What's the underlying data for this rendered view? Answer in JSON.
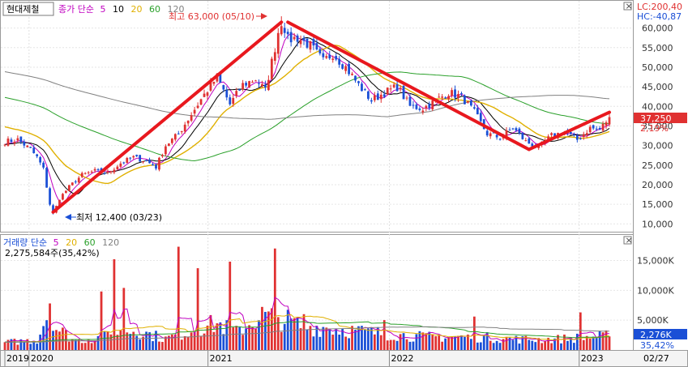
{
  "stock_name": "현대제철",
  "price_legend": {
    "label": "종가 단순",
    "periods": [
      "5",
      "10",
      "20",
      "60",
      "120"
    ]
  },
  "volume_legend": {
    "label": "거래량 단순",
    "periods": [
      "5",
      "20",
      "60",
      "120"
    ],
    "value_text": "2,275,584주(35,42%)"
  },
  "annotations": {
    "high": "최고 63,000 (05/10)",
    "low": "최저 12,400 (03/23)"
  },
  "top_right": {
    "lc": "LC:200,40",
    "hc": "HC:-40,87"
  },
  "current": {
    "price_label": "37,250",
    "change_label": "2,19%",
    "volume_label": "2,276K",
    "volume_pct": "35,42%"
  },
  "date_label": "02/27",
  "x_labels": [
    "2019",
    "2020",
    "2021",
    "2022",
    "2023"
  ],
  "colors": {
    "up": "#e03131",
    "down": "#1a4fd6",
    "ma5": "#c000c0",
    "ma10": "#000000",
    "ma20": "#e0b000",
    "ma60": "#2aa02a",
    "ma120": "#808080",
    "trend": "#e8181e",
    "accent": "#e03131"
  },
  "chart_data": {
    "type": "candlestick",
    "price_axis": {
      "ticks": [
        10000,
        15000,
        20000,
        25000,
        30000,
        35000,
        40000,
        45000,
        50000,
        55000,
        60000
      ],
      "tick_labels": [
        "10,000",
        "15,000",
        "20,000",
        "25,000",
        "30,000",
        "35,000",
        "40,000",
        "45,000",
        "50,000",
        "55,000",
        "60,000"
      ],
      "range": [
        8000,
        65500
      ]
    },
    "volume_axis": {
      "ticks": [
        5000,
        10000,
        15000
      ],
      "tick_labels": [
        "5,000K",
        "10,000K",
        "15,000K"
      ],
      "range": [
        0,
        19000
      ]
    },
    "price_anchors": [
      [
        0,
        31000
      ],
      [
        4,
        31500
      ],
      [
        8,
        29000
      ],
      [
        10,
        27000
      ],
      [
        12,
        24000
      ],
      [
        14,
        15000
      ],
      [
        15,
        12400
      ],
      [
        17,
        16500
      ],
      [
        20,
        19500
      ],
      [
        24,
        22500
      ],
      [
        28,
        23500
      ],
      [
        32,
        23000
      ],
      [
        36,
        25500
      ],
      [
        40,
        27000
      ],
      [
        44,
        26000
      ],
      [
        47,
        24500
      ],
      [
        50,
        30000
      ],
      [
        54,
        33000
      ],
      [
        58,
        38000
      ],
      [
        62,
        43000
      ],
      [
        66,
        47500
      ],
      [
        70,
        40500
      ],
      [
        74,
        45500
      ],
      [
        78,
        47000
      ],
      [
        81,
        44000
      ],
      [
        84,
        55000
      ],
      [
        86,
        63000
      ],
      [
        88,
        57000
      ],
      [
        91,
        57500
      ],
      [
        95,
        55500
      ],
      [
        99,
        51500
      ],
      [
        102,
        53500
      ],
      [
        106,
        50000
      ],
      [
        110,
        45500
      ],
      [
        114,
        41500
      ],
      [
        118,
        43500
      ],
      [
        122,
        45000
      ],
      [
        126,
        40000
      ],
      [
        130,
        39500
      ],
      [
        134,
        41500
      ],
      [
        138,
        43500
      ],
      [
        142,
        42500
      ],
      [
        146,
        38500
      ],
      [
        150,
        33000
      ],
      [
        154,
        32000
      ],
      [
        158,
        34500
      ],
      [
        162,
        31000
      ],
      [
        166,
        29500
      ],
      [
        170,
        32500
      ],
      [
        174,
        33500
      ],
      [
        178,
        31500
      ],
      [
        182,
        34500
      ],
      [
        185,
        34000
      ],
      [
        188,
        37250
      ]
    ],
    "candle_count": 189,
    "first_candle_date": "2019-12",
    "last_candle_date": "2023-02-27",
    "ma120_start": 49000,
    "ma60_start": 42500,
    "ma20_start": 35000,
    "volume_levels": [
      [
        0,
        1200
      ],
      [
        10,
        1600
      ],
      [
        14,
        7000
      ],
      [
        16,
        3500
      ],
      [
        22,
        1500
      ],
      [
        30,
        2000
      ],
      [
        40,
        3200
      ],
      [
        50,
        1800
      ],
      [
        60,
        3500
      ],
      [
        66,
        4200
      ],
      [
        72,
        2800
      ],
      [
        80,
        5500
      ],
      [
        86,
        5000
      ],
      [
        92,
        3800
      ],
      [
        100,
        3600
      ],
      [
        110,
        3000
      ],
      [
        120,
        2500
      ],
      [
        130,
        2100
      ],
      [
        140,
        2100
      ],
      [
        150,
        2000
      ],
      [
        160,
        1700
      ],
      [
        170,
        1700
      ],
      [
        180,
        2000
      ],
      [
        188,
        2276
      ]
    ],
    "volume_spikes": [
      [
        14,
        7800
      ],
      [
        30,
        9800
      ],
      [
        34,
        15200
      ],
      [
        37,
        10400
      ],
      [
        54,
        17300
      ],
      [
        60,
        13700
      ],
      [
        70,
        14800
      ],
      [
        84,
        17000
      ],
      [
        93,
        6000
      ],
      [
        118,
        5000
      ],
      [
        146,
        5600
      ],
      [
        179,
        6300
      ]
    ],
    "high_point": {
      "index": 86,
      "value": 63000
    },
    "low_point": {
      "index": 15,
      "value": 12400
    },
    "trend_lines": [
      [
        [
          15,
          13000
        ],
        [
          86,
          61500
        ]
      ],
      [
        [
          88,
          61500
        ],
        [
          163,
          29000
        ]
      ],
      [
        [
          163,
          29000
        ],
        [
          188,
          38500
        ]
      ]
    ]
  }
}
